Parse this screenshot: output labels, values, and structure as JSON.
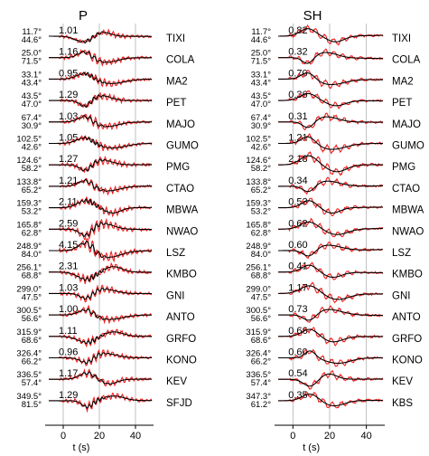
{
  "chart_data": [
    {
      "type": "line",
      "title": "P",
      "xlabel": "t (s)",
      "xlim": [
        -10,
        50
      ],
      "xticks": [
        0,
        20,
        40
      ],
      "grid": "vertical lines at x = 0, 20, 40",
      "series_legend": [
        "observed (red)",
        "synthetic (black)"
      ],
      "traces": [
        {
          "az": "11.7°",
          "dist": "44.6°",
          "amp": "1.01",
          "station": "TIXI"
        },
        {
          "az": "25.0°",
          "dist": "71.5°",
          "amp": "1.16",
          "station": "COLA"
        },
        {
          "az": "33.1°",
          "dist": "43.4°",
          "amp": "0.95",
          "station": "MA2"
        },
        {
          "az": "43.5°",
          "dist": "47.0°",
          "amp": "1.29",
          "station": "PET"
        },
        {
          "az": "67.4°",
          "dist": "30.9°",
          "amp": "1.03",
          "station": "MAJO"
        },
        {
          "az": "102.5°",
          "dist": "42.6°",
          "amp": "1.05",
          "station": "GUMO"
        },
        {
          "az": "124.6°",
          "dist": "58.2°",
          "amp": "1.27",
          "station": "PMG"
        },
        {
          "az": "133.8°",
          "dist": "65.2°",
          "amp": "1.21",
          "station": "CTAO"
        },
        {
          "az": "159.3°",
          "dist": "53.2°",
          "amp": "2.11",
          "station": "MBWA"
        },
        {
          "az": "165.8°",
          "dist": "62.8°",
          "amp": "2.59",
          "station": "NWAO"
        },
        {
          "az": "248.9°",
          "dist": "84.0°",
          "amp": "4.15",
          "station": "LSZ"
        },
        {
          "az": "256.1°",
          "dist": "68.8°",
          "amp": "2.31",
          "station": "KMBO"
        },
        {
          "az": "299.0°",
          "dist": "47.5°",
          "amp": "1.03",
          "station": "GNI"
        },
        {
          "az": "300.5°",
          "dist": "56.6°",
          "amp": "1.00",
          "station": "ANTO"
        },
        {
          "az": "315.9°",
          "dist": "68.6°",
          "amp": "1.11",
          "station": "GRFO"
        },
        {
          "az": "326.4°",
          "dist": "66.2°",
          "amp": "0.96",
          "station": "KONO"
        },
        {
          "az": "336.5°",
          "dist": "57.4°",
          "amp": "1.17",
          "station": "KEV"
        },
        {
          "az": "349.5°",
          "dist": "81.5°",
          "amp": "1.29",
          "station": "SFJD"
        }
      ]
    },
    {
      "type": "line",
      "title": "SH",
      "xlabel": "t (s)",
      "xlim": [
        -10,
        50
      ],
      "xticks": [
        0,
        20,
        40
      ],
      "grid": "vertical lines at x = 0, 20, 40",
      "series_legend": [
        "observed (red)",
        "synthetic (black)"
      ],
      "traces": [
        {
          "az": "11.7°",
          "dist": "44.6°",
          "amp": "0.82",
          "station": "TIXI"
        },
        {
          "az": "25.0°",
          "dist": "71.5°",
          "amp": "0.32",
          "station": "COLA"
        },
        {
          "az": "33.1°",
          "dist": "43.4°",
          "amp": "0.70",
          "station": "MA2"
        },
        {
          "az": "43.5°",
          "dist": "47.0°",
          "amp": "0.36",
          "station": "PET"
        },
        {
          "az": "67.4°",
          "dist": "30.9°",
          "amp": "0.31",
          "station": "MAJO"
        },
        {
          "az": "102.5°",
          "dist": "42.6°",
          "amp": "1.21",
          "station": "GUMO"
        },
        {
          "az": "124.6°",
          "dist": "58.2°",
          "amp": "2.18",
          "station": "PMG"
        },
        {
          "az": "133.8°",
          "dist": "65.2°",
          "amp": "0.34",
          "station": "CTAO"
        },
        {
          "az": "159.3°",
          "dist": "53.2°",
          "amp": "0.53",
          "station": "MBWA"
        },
        {
          "az": "165.8°",
          "dist": "62.8°",
          "amp": "0.62",
          "station": "NWAO"
        },
        {
          "az": "248.9°",
          "dist": "84.0°",
          "amp": "0.60",
          "station": "LSZ"
        },
        {
          "az": "256.1°",
          "dist": "68.8°",
          "amp": "0.41",
          "station": "KMBO"
        },
        {
          "az": "299.0°",
          "dist": "47.5°",
          "amp": "1.17",
          "station": "GNI"
        },
        {
          "az": "300.5°",
          "dist": "56.6°",
          "amp": "0.73",
          "station": "ANTO"
        },
        {
          "az": "315.9°",
          "dist": "68.6°",
          "amp": "0.66",
          "station": "GRFO"
        },
        {
          "az": "326.4°",
          "dist": "66.2°",
          "amp": "0.60",
          "station": "KONO"
        },
        {
          "az": "336.5°",
          "dist": "57.4°",
          "amp": "0.54",
          "station": "KEV"
        },
        {
          "az": "347.3°",
          "dist": "61.2°",
          "amp": "0.35",
          "station": "KBS"
        }
      ]
    }
  ],
  "colors": {
    "observed": "#ee2222",
    "synthetic": "#000000",
    "grid": "#b0b0b0",
    "axis": "#000000"
  }
}
